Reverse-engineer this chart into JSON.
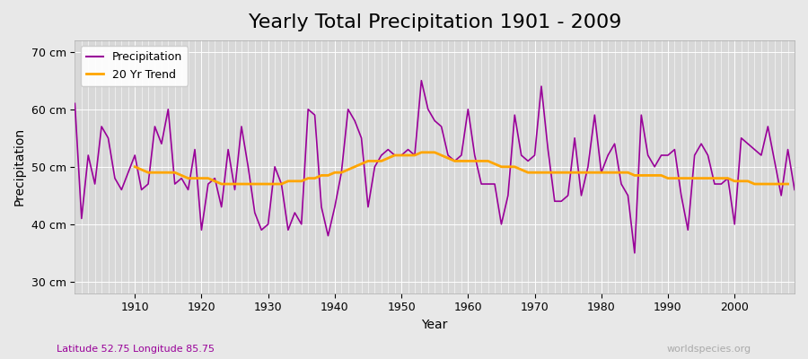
{
  "title": "Yearly Total Precipitation 1901 - 2009",
  "xlabel": "Year",
  "ylabel": "Precipitation",
  "subtitle": "Latitude 52.75 Longitude 85.75",
  "watermark": "worldspecies.org",
  "years": [
    1901,
    1902,
    1903,
    1904,
    1905,
    1906,
    1907,
    1908,
    1909,
    1910,
    1911,
    1912,
    1913,
    1914,
    1915,
    1916,
    1917,
    1918,
    1919,
    1920,
    1921,
    1922,
    1923,
    1924,
    1925,
    1926,
    1927,
    1928,
    1929,
    1930,
    1931,
    1932,
    1933,
    1934,
    1935,
    1936,
    1937,
    1938,
    1939,
    1940,
    1941,
    1942,
    1943,
    1944,
    1945,
    1946,
    1947,
    1948,
    1949,
    1950,
    1951,
    1952,
    1953,
    1954,
    1955,
    1956,
    1957,
    1958,
    1959,
    1960,
    1961,
    1962,
    1963,
    1964,
    1965,
    1966,
    1967,
    1968,
    1969,
    1970,
    1971,
    1972,
    1973,
    1974,
    1975,
    1976,
    1977,
    1978,
    1979,
    1980,
    1981,
    1982,
    1983,
    1984,
    1985,
    1986,
    1987,
    1988,
    1989,
    1990,
    1991,
    1992,
    1993,
    1994,
    1995,
    1996,
    1997,
    1998,
    1999,
    2000,
    2001,
    2002,
    2003,
    2004,
    2005,
    2006,
    2007,
    2008,
    2009
  ],
  "precip": [
    61,
    41,
    52,
    47,
    57,
    55,
    48,
    46,
    49,
    52,
    46,
    47,
    57,
    54,
    60,
    47,
    48,
    46,
    53,
    39,
    47,
    48,
    43,
    53,
    46,
    57,
    50,
    42,
    39,
    40,
    50,
    47,
    39,
    42,
    40,
    60,
    59,
    43,
    38,
    43,
    49,
    60,
    58,
    55,
    43,
    50,
    52,
    53,
    52,
    52,
    53,
    52,
    65,
    60,
    58,
    57,
    52,
    51,
    52,
    60,
    52,
    47,
    47,
    47,
    40,
    45,
    59,
    52,
    51,
    52,
    64,
    53,
    44,
    44,
    45,
    55,
    45,
    50,
    59,
    49,
    52,
    54,
    47,
    45,
    35,
    59,
    52,
    50,
    52,
    52,
    53,
    45,
    39,
    52,
    54,
    52,
    47,
    47,
    48,
    40,
    55,
    54,
    53,
    52,
    57,
    51,
    45,
    53,
    46
  ],
  "trend": [
    null,
    null,
    null,
    null,
    null,
    null,
    null,
    null,
    null,
    50,
    49.5,
    49,
    49,
    49,
    49,
    49,
    48.5,
    48,
    48,
    48,
    48,
    47.5,
    47,
    47,
    47,
    47,
    47,
    47,
    47,
    47,
    47,
    47,
    47.5,
    47.5,
    47.5,
    48,
    48,
    48.5,
    48.5,
    49,
    49,
    49.5,
    50,
    50.5,
    51,
    51,
    51,
    51.5,
    52,
    52,
    52,
    52,
    52.5,
    52.5,
    52.5,
    52,
    51.5,
    51,
    51,
    51,
    51,
    51,
    51,
    50.5,
    50,
    50,
    50,
    49.5,
    49,
    49,
    49,
    49,
    49,
    49,
    49,
    49,
    49,
    49,
    49,
    49,
    49,
    49,
    49,
    49,
    48.5,
    48.5,
    48.5,
    48.5,
    48.5,
    48,
    48,
    48,
    48,
    48,
    48,
    48,
    48,
    48,
    48,
    47.5,
    47.5,
    47.5,
    47,
    47,
    47,
    47,
    47,
    47
  ],
  "precip_color": "#990099",
  "trend_color": "#FFA500",
  "bg_color": "#E8E8E8",
  "plot_bg_color": "#D8D8D8",
  "grid_color": "#FFFFFF",
  "ylim": [
    28,
    72
  ],
  "yticks": [
    30,
    40,
    50,
    60,
    70
  ],
  "ytick_labels": [
    "30 cm",
    "40 cm",
    "50 cm",
    "60 cm",
    "70 cm"
  ],
  "title_fontsize": 16,
  "label_fontsize": 10,
  "tick_fontsize": 9
}
